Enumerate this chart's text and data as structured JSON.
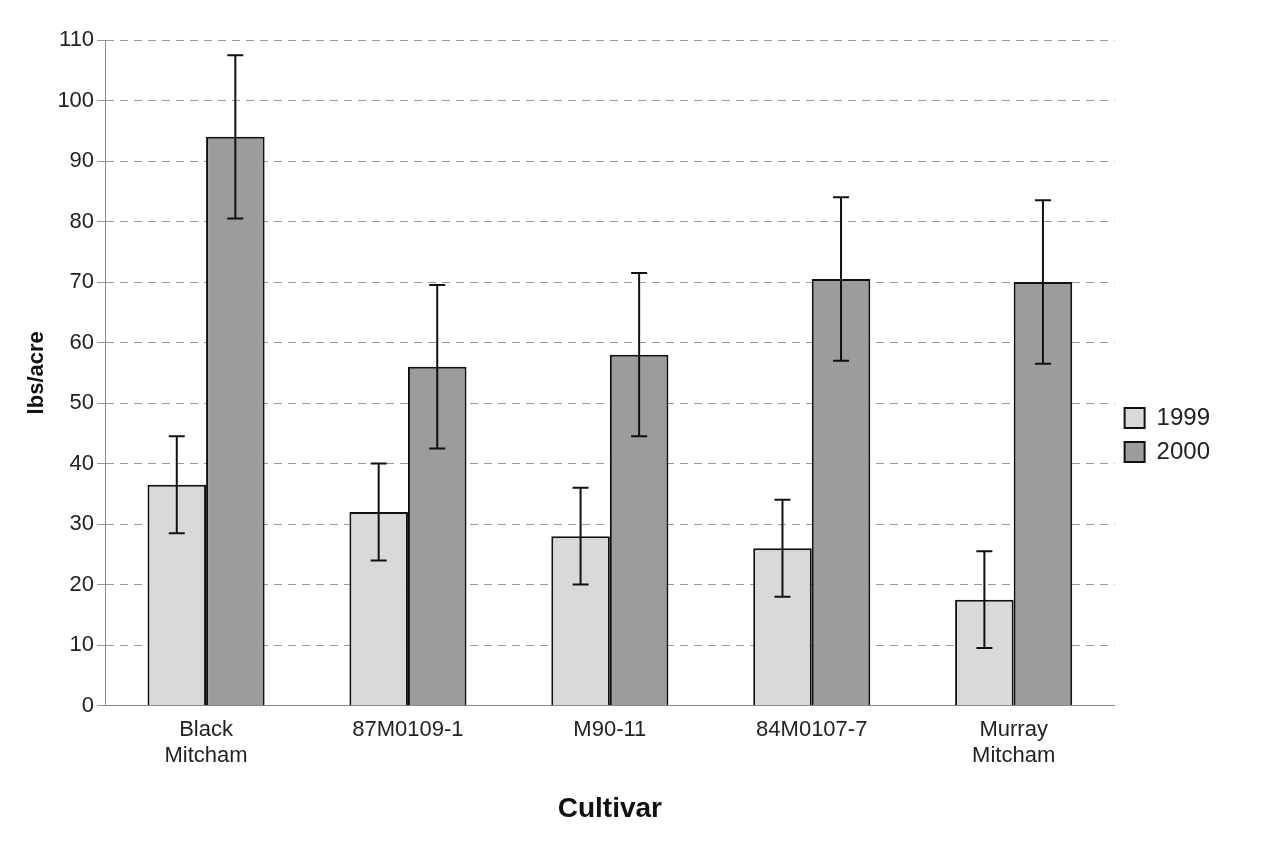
{
  "chart_data": {
    "type": "bar",
    "xlabel": "Cultivar",
    "ylabel": "lbs/acre",
    "categories": [
      "Black Mitcham",
      "87M0109-1",
      "M90-11",
      "84M0107-7",
      "Murray Mitcham"
    ],
    "series": [
      {
        "name": "1999",
        "color": "#d9d9d9",
        "values": [
          36.5,
          32,
          28,
          26,
          17.5
        ],
        "errors": [
          8,
          8,
          8,
          8,
          8
        ]
      },
      {
        "name": "2000",
        "color": "#9c9c9c",
        "values": [
          94,
          56,
          58,
          70.5,
          70
        ],
        "errors": [
          13.5,
          13.5,
          13.5,
          13.5,
          13.5
        ]
      }
    ],
    "ylim": [
      0,
      110
    ],
    "yticks": [
      0,
      10,
      20,
      30,
      40,
      50,
      60,
      70,
      80,
      90,
      100,
      110
    ],
    "grid": "y",
    "legend": "right"
  }
}
